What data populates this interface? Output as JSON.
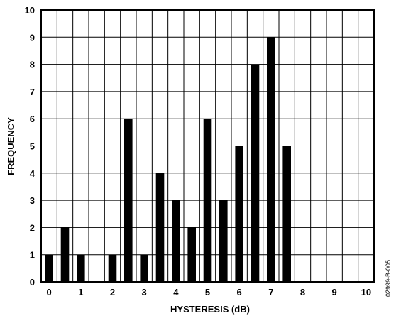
{
  "chart_data": {
    "type": "bar",
    "xlabel": "HYSTERESIS (dB)",
    "ylabel": "FREQUENCY",
    "xlim": [
      -0.25,
      10.25
    ],
    "ylim": [
      0,
      10
    ],
    "x_ticks": [
      0,
      1,
      2,
      3,
      4,
      5,
      6,
      7,
      8,
      9,
      10
    ],
    "y_ticks": [
      0,
      1,
      2,
      3,
      4,
      5,
      6,
      7,
      8,
      9,
      10
    ],
    "grid": true,
    "x": [
      0,
      0.5,
      1,
      2,
      2.5,
      3,
      3.5,
      4,
      4.5,
      5,
      5.5,
      6,
      6.5,
      7,
      7.5
    ],
    "values": [
      1,
      2,
      1,
      1,
      6,
      1,
      4,
      3,
      2,
      6,
      3,
      5,
      8,
      9,
      5
    ],
    "bar_color": "#000000"
  },
  "figure_code": "02999-B-005"
}
